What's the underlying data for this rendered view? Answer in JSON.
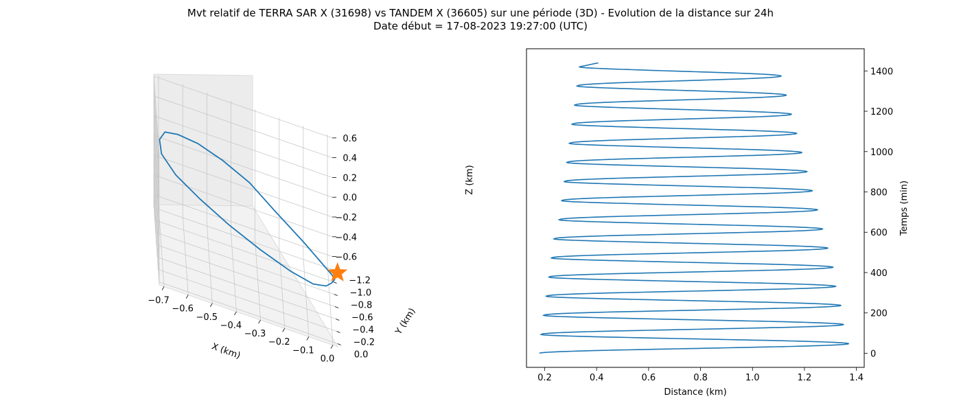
{
  "title_line1": "Mvt relatif de TERRA SAR X (31698) vs TANDEM X (36605) sur une période (3D) - Evolution de la distance sur 24h",
  "title_line2": "Date début = 17-08-2023 19:27:00 (UTC)",
  "colors": {
    "line": "#1f77b4",
    "marker": "#ff7f0e",
    "pane": "#f2f2f2",
    "pane_edge": "#dcdcdc",
    "grid": "#c8c8c8"
  },
  "chart_data": [
    {
      "type": "line",
      "projection": "3d",
      "title": "",
      "xlabel": "X (km)",
      "ylabel": "Y (km)",
      "zlabel": "Z (km)",
      "xlim": [
        -0.72,
        0.02
      ],
      "ylim": [
        -1.25,
        0.05
      ],
      "zlim": [
        -0.7,
        0.62
      ],
      "x_ticks": [
        "−0.7",
        "−0.6",
        "−0.5",
        "−0.4",
        "−0.3",
        "−0.2",
        "−0.1",
        "0.0"
      ],
      "y_ticks": [
        "−1.2",
        "−1.0",
        "−0.8",
        "−0.6",
        "−0.4",
        "−0.2",
        "0.0"
      ],
      "z_ticks": [
        "−0.6",
        "−0.4",
        "−0.2",
        "0.0",
        "0.2",
        "0.4",
        "0.6"
      ],
      "grid": true,
      "series": [
        {
          "points": [
            [
              0.0,
              0.0,
              -0.03
            ],
            [
              -0.12,
              -0.1,
              0.15
            ],
            [
              -0.24,
              -0.18,
              0.32
            ],
            [
              -0.34,
              -0.28,
              0.45
            ],
            [
              -0.45,
              -0.38,
              0.52
            ],
            [
              -0.55,
              -0.55,
              0.5
            ],
            [
              -0.63,
              -0.7,
              0.43
            ],
            [
              -0.68,
              -0.88,
              0.3
            ],
            [
              -0.7,
              -1.02,
              0.12
            ],
            [
              -0.69,
              -1.12,
              -0.08
            ],
            [
              -0.63,
              -1.18,
              -0.28
            ],
            [
              -0.53,
              -1.2,
              -0.45
            ],
            [
              -0.41,
              -1.15,
              -0.58
            ],
            [
              -0.28,
              -1.03,
              -0.65
            ],
            [
              -0.16,
              -0.85,
              -0.65
            ],
            [
              -0.07,
              -0.62,
              -0.56
            ],
            [
              -0.02,
              -0.4,
              -0.4
            ],
            [
              0.0,
              -0.22,
              -0.24
            ],
            [
              0.01,
              -0.1,
              -0.12
            ],
            [
              0.0,
              -0.03,
              -0.05
            ],
            [
              0.0,
              0.0,
              -0.03
            ]
          ]
        }
      ],
      "marker": {
        "label": "star",
        "x": 0.0,
        "y": 0.0,
        "z": 0.0
      }
    },
    {
      "type": "line",
      "title": "",
      "xlabel": "Distance (km)",
      "ylabel": "Temps (min)",
      "xlim": [
        0.13,
        1.43
      ],
      "ylim": [
        -70,
        1510
      ],
      "x_ticks": [
        0.2,
        0.4,
        0.6,
        0.8,
        1.0,
        1.2,
        1.4
      ],
      "y_ticks": [
        0,
        200,
        400,
        600,
        800,
        1000,
        1200,
        1400
      ],
      "grid": false,
      "series": [
        {
          "start": 0.18,
          "cycles": [
            {
              "max": 1.37,
              "min": 0.19
            },
            {
              "max": 1.35,
              "min": 0.2
            },
            {
              "max": 1.34,
              "min": 0.21
            },
            {
              "max": 1.32,
              "min": 0.22
            },
            {
              "max": 1.31,
              "min": 0.23
            },
            {
              "max": 1.29,
              "min": 0.24
            },
            {
              "max": 1.27,
              "min": 0.26
            },
            {
              "max": 1.25,
              "min": 0.27
            },
            {
              "max": 1.23,
              "min": 0.28
            },
            {
              "max": 1.21,
              "min": 0.29
            },
            {
              "max": 1.19,
              "min": 0.3
            },
            {
              "max": 1.17,
              "min": 0.31
            },
            {
              "max": 1.15,
              "min": 0.32
            },
            {
              "max": 1.13,
              "min": 0.33
            },
            {
              "max": 1.11,
              "min": 0.34
            }
          ],
          "end": 0.45,
          "period_min": 94.8,
          "duration_min": 1440
        }
      ]
    }
  ]
}
